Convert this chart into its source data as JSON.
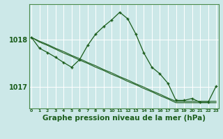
{
  "bg_color": "#cce8e8",
  "grid_color": "#ffffff",
  "line_color": "#1a5c1a",
  "xlabel": "Graphe pression niveau de la mer (hPa)",
  "xlabel_fontsize": 7.5,
  "ytick_labels": [
    "1017",
    "1018"
  ],
  "ytick_values": [
    1017.0,
    1018.0
  ],
  "ylim": [
    1016.55,
    1018.75
  ],
  "xlim": [
    -0.3,
    23.3
  ],
  "line1_x": [
    0,
    1,
    2,
    3,
    4,
    5,
    6,
    7,
    8,
    9,
    10,
    11,
    12,
    13,
    14,
    15,
    16,
    17,
    18,
    19,
    20,
    21,
    22,
    23
  ],
  "line1_y": [
    1018.05,
    1017.82,
    1017.73,
    1017.63,
    1017.52,
    1017.42,
    1017.58,
    1017.88,
    1018.12,
    1018.28,
    1018.42,
    1018.58,
    1018.44,
    1018.12,
    1017.72,
    1017.42,
    1017.28,
    1017.08,
    1016.72,
    1016.72,
    1016.76,
    1016.68,
    1016.68,
    1017.02
  ],
  "line2_x": [
    0,
    1,
    2,
    3,
    4,
    5,
    6,
    7,
    8,
    9,
    10,
    11,
    12,
    13,
    14,
    15,
    16,
    17,
    18,
    19,
    20,
    21,
    22,
    23
  ],
  "line2_y": [
    1018.05,
    1017.95,
    1017.88,
    1017.8,
    1017.72,
    1017.65,
    1017.57,
    1017.5,
    1017.42,
    1017.35,
    1017.27,
    1017.2,
    1017.12,
    1017.05,
    1016.97,
    1016.9,
    1016.82,
    1016.75,
    1016.67,
    1016.67,
    1016.67,
    1016.67,
    1016.67,
    1016.67
  ],
  "line3_x": [
    0,
    1,
    2,
    3,
    4,
    5,
    6,
    7,
    8,
    9,
    10,
    11,
    12,
    13,
    14,
    15,
    16,
    17,
    18,
    19,
    20,
    21,
    22,
    23
  ],
  "line3_y": [
    1018.05,
    1017.97,
    1017.9,
    1017.82,
    1017.75,
    1017.67,
    1017.6,
    1017.52,
    1017.45,
    1017.37,
    1017.3,
    1017.22,
    1017.15,
    1017.07,
    1017.0,
    1016.92,
    1016.85,
    1016.77,
    1016.7,
    1016.7,
    1016.7,
    1016.7,
    1016.7,
    1016.7
  ]
}
